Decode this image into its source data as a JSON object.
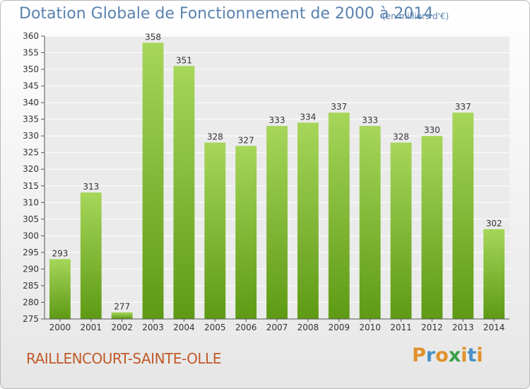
{
  "header": {
    "title": "Dotation Globale de Fonctionnement de 2000 à 2014",
    "unit": "(en milliers d'€)"
  },
  "footer": {
    "commune": "RAILLENCOURT-SAINTE-OLLE",
    "logo": "Proxiti"
  },
  "colors": {
    "bar_top": "#a6d65a",
    "bar_bottom": "#5e9a14",
    "title": "#5a82b0",
    "commune": "#c05a28",
    "logo_letters": [
      "#e0902a",
      "#4a90c8",
      "#e0902a",
      "#3aa048",
      "#e0902a",
      "#4a90c8",
      "#e0902a"
    ]
  },
  "chart_data": {
    "type": "bar",
    "title": "Dotation Globale de Fonctionnement de 2000 à 2014",
    "categories": [
      "2000",
      "2001",
      "2002",
      "2003",
      "2004",
      "2005",
      "2006",
      "2007",
      "2008",
      "2009",
      "2010",
      "2011",
      "2012",
      "2013",
      "2014"
    ],
    "values": [
      293,
      313,
      277,
      358,
      351,
      328,
      327,
      333,
      334,
      337,
      333,
      328,
      330,
      337,
      302
    ],
    "ylim": [
      275,
      360
    ],
    "yticks": [
      275,
      280,
      285,
      290,
      295,
      300,
      305,
      310,
      315,
      320,
      325,
      330,
      335,
      340,
      345,
      350,
      355,
      360
    ],
    "grid": true,
    "xlabel": "",
    "ylabel": ""
  }
}
